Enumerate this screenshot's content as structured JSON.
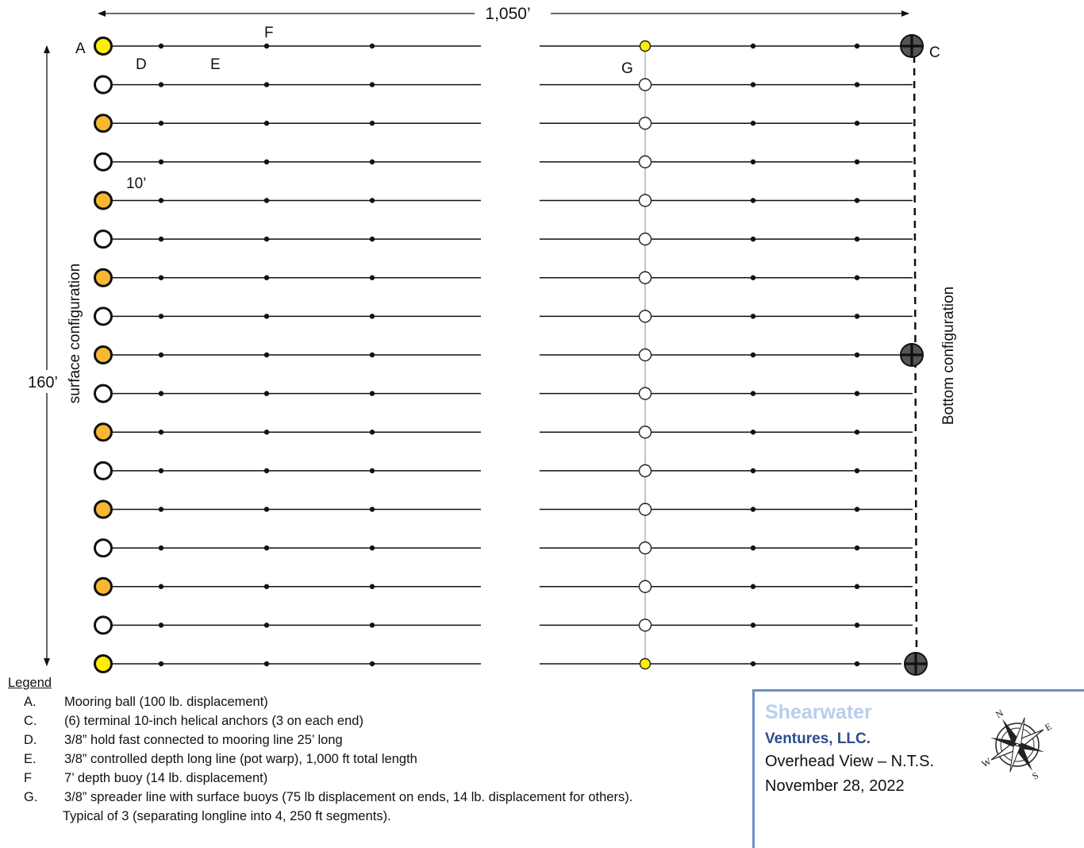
{
  "dimensions": {
    "width_label": "1,050’",
    "height_label": "160’",
    "spacing_label": "10’"
  },
  "side_labels": {
    "left": "surface configuration",
    "right": "Bottom configuration"
  },
  "callouts": {
    "a": "A",
    "c": "C",
    "d": "D",
    "e": "E",
    "f": "F",
    "g": "G"
  },
  "diagram": {
    "line_count": 17,
    "left_buoy_styles": [
      "yellow",
      "white",
      "orange",
      "white",
      "orange",
      "white",
      "orange",
      "white",
      "orange",
      "white",
      "orange",
      "white",
      "orange",
      "white",
      "orange",
      "white",
      "yellow"
    ],
    "spreader_buoy_styles": [
      "yellow",
      "white",
      "white",
      "white",
      "white",
      "white",
      "white",
      "white",
      "white",
      "white",
      "white",
      "white",
      "white",
      "white",
      "white",
      "white",
      "yellow"
    ],
    "anchor_rows": [
      0,
      8,
      16
    ],
    "colors": {
      "yellow": "#ffee00",
      "orange": "#f7b731",
      "white": "#ffffff",
      "anchor": "#555555",
      "spreader": "#aaaaaa"
    }
  },
  "legend": {
    "title": "Legend",
    "items": [
      {
        "key": "A.",
        "text": "Mooring ball (100 lb. displacement)"
      },
      {
        "key": "C.",
        "text": "(6) terminal 10-inch helical anchors (3 on each end)"
      },
      {
        "key": "D.",
        "text": "3/8” hold fast connected to mooring line 25’ long"
      },
      {
        "key": "E.",
        "text": "3/8” controlled depth long line (pot warp), 1,000 ft total length"
      },
      {
        "key": "F",
        "text": "7’ depth buoy (14 lb. displacement)"
      },
      {
        "key": "G.",
        "text": " 3/8” spreader line with surface buoys (75 lb displacement on ends, 14 lb. displacement for others)."
      }
    ],
    "continuation": "Typical of 3 (separating longline into 4, 250 ft segments)."
  },
  "title_block": {
    "company": "Shearwater",
    "company_suffix": "Ventures, LLC.",
    "view": "Overhead View – N.T.S.",
    "date": "November 28, 2022",
    "compass_letters": {
      "n": "N",
      "e": "E",
      "s": "S",
      "w": "W"
    }
  }
}
